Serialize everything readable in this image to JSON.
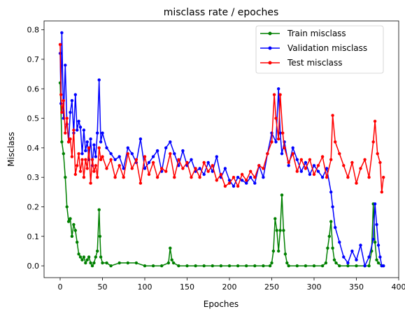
{
  "chart_data": {
    "type": "line",
    "title": "misclass rate / epoches",
    "xlabel": "Epoches",
    "ylabel": "Misclass",
    "xlim": [
      -19,
      400
    ],
    "ylim": [
      -0.04,
      0.83
    ],
    "x_ticks": [
      0,
      50,
      100,
      150,
      200,
      250,
      300,
      350,
      400
    ],
    "x_tick_labels": [
      "0",
      "50",
      "100",
      "150",
      "200",
      "250",
      "300",
      "350",
      "400"
    ],
    "y_ticks": [
      0.0,
      0.1,
      0.2,
      0.3,
      0.4,
      0.5,
      0.6,
      0.7,
      0.8
    ],
    "y_tick_labels": [
      "0.0",
      "0.1",
      "0.2",
      "0.3",
      "0.4",
      "0.5",
      "0.6",
      "0.7",
      "0.8"
    ],
    "grid": false,
    "legend_position": "top-right",
    "series": [
      {
        "name": "Train misclass",
        "color": "#008000",
        "x": [
          0,
          2,
          4,
          6,
          8,
          10,
          12,
          14,
          16,
          18,
          20,
          22,
          24,
          26,
          28,
          30,
          32,
          34,
          36,
          38,
          40,
          42,
          44,
          46,
          47,
          48,
          50,
          55,
          60,
          70,
          80,
          90,
          100,
          110,
          120,
          128,
          130,
          132,
          134,
          140,
          150,
          160,
          170,
          180,
          190,
          200,
          210,
          220,
          230,
          240,
          248,
          250,
          252,
          254,
          256,
          258,
          260,
          262,
          264,
          266,
          268,
          270,
          280,
          290,
          300,
          310,
          314,
          316,
          318,
          320,
          322,
          324,
          326,
          330,
          340,
          350,
          360,
          365,
          368,
          370,
          372,
          374,
          376,
          380,
          382
        ],
        "values": [
          0.62,
          0.42,
          0.38,
          0.3,
          0.2,
          0.15,
          0.16,
          0.1,
          0.14,
          0.12,
          0.08,
          0.04,
          0.03,
          0.02,
          0.03,
          0.01,
          0.02,
          0.03,
          0.01,
          0.0,
          0.01,
          0.03,
          0.05,
          0.19,
          0.1,
          0.03,
          0.01,
          0.01,
          0.0,
          0.01,
          0.01,
          0.01,
          0.0,
          0.0,
          0.0,
          0.01,
          0.06,
          0.02,
          0.01,
          0.0,
          0.0,
          0.0,
          0.0,
          0.0,
          0.0,
          0.0,
          0.0,
          0.0,
          0.0,
          0.0,
          0.0,
          0.01,
          0.05,
          0.16,
          0.12,
          0.05,
          0.12,
          0.24,
          0.12,
          0.04,
          0.01,
          0.0,
          0.0,
          0.0,
          0.0,
          0.0,
          0.01,
          0.06,
          0.1,
          0.15,
          0.06,
          0.02,
          0.01,
          0.0,
          0.0,
          0.0,
          0.0,
          0.0,
          0.05,
          0.21,
          0.08,
          0.02,
          0.01,
          0.0,
          0.0
        ]
      },
      {
        "name": "Validation misclass",
        "color": "#0000ff",
        "x": [
          0,
          1,
          2,
          4,
          6,
          8,
          10,
          12,
          14,
          16,
          18,
          20,
          22,
          24,
          26,
          28,
          30,
          32,
          34,
          36,
          38,
          40,
          42,
          44,
          46,
          48,
          50,
          55,
          60,
          65,
          70,
          75,
          80,
          85,
          90,
          95,
          100,
          105,
          110,
          115,
          120,
          125,
          130,
          135,
          140,
          145,
          150,
          155,
          160,
          165,
          170,
          175,
          180,
          185,
          190,
          195,
          200,
          205,
          210,
          215,
          220,
          225,
          230,
          235,
          240,
          245,
          250,
          255,
          258,
          260,
          262,
          265,
          270,
          275,
          280,
          285,
          290,
          295,
          300,
          305,
          310,
          315,
          320,
          322,
          325,
          330,
          335,
          340,
          345,
          350,
          355,
          360,
          365,
          370,
          372,
          374,
          376,
          378,
          380,
          382
        ],
        "values": [
          0.72,
          0.55,
          0.79,
          0.5,
          0.68,
          0.48,
          0.42,
          0.52,
          0.56,
          0.45,
          0.58,
          0.46,
          0.49,
          0.47,
          0.38,
          0.46,
          0.39,
          0.42,
          0.36,
          0.43,
          0.34,
          0.41,
          0.37,
          0.45,
          0.63,
          0.42,
          0.45,
          0.4,
          0.38,
          0.36,
          0.37,
          0.33,
          0.4,
          0.38,
          0.35,
          0.43,
          0.33,
          0.35,
          0.37,
          0.39,
          0.32,
          0.4,
          0.42,
          0.38,
          0.34,
          0.39,
          0.34,
          0.36,
          0.32,
          0.33,
          0.31,
          0.35,
          0.32,
          0.37,
          0.3,
          0.33,
          0.29,
          0.27,
          0.3,
          0.29,
          0.28,
          0.3,
          0.28,
          0.34,
          0.3,
          0.38,
          0.45,
          0.42,
          0.6,
          0.45,
          0.38,
          0.42,
          0.34,
          0.4,
          0.36,
          0.32,
          0.35,
          0.31,
          0.34,
          0.32,
          0.3,
          0.33,
          0.25,
          0.2,
          0.13,
          0.08,
          0.03,
          0.01,
          0.05,
          0.02,
          0.07,
          0.0,
          0.03,
          0.09,
          0.21,
          0.14,
          0.07,
          0.03,
          0.0,
          0.0
        ]
      },
      {
        "name": "Test misclass",
        "color": "#ff0000",
        "x": [
          0,
          1,
          2,
          4,
          6,
          8,
          10,
          12,
          14,
          16,
          18,
          20,
          22,
          24,
          26,
          28,
          30,
          32,
          34,
          36,
          38,
          40,
          42,
          44,
          46,
          48,
          50,
          55,
          60,
          65,
          70,
          75,
          80,
          85,
          90,
          95,
          100,
          105,
          110,
          115,
          120,
          125,
          130,
          135,
          140,
          145,
          150,
          155,
          160,
          165,
          170,
          175,
          180,
          185,
          190,
          195,
          200,
          205,
          210,
          215,
          220,
          225,
          230,
          235,
          240,
          245,
          250,
          253,
          255,
          258,
          260,
          263,
          265,
          270,
          275,
          280,
          285,
          290,
          295,
          300,
          305,
          310,
          315,
          320,
          322,
          325,
          330,
          335,
          340,
          345,
          350,
          355,
          360,
          365,
          370,
          372,
          375,
          378,
          380,
          382
        ],
        "values": [
          0.75,
          0.58,
          0.52,
          0.56,
          0.45,
          0.5,
          0.42,
          0.43,
          0.37,
          0.46,
          0.31,
          0.34,
          0.38,
          0.32,
          0.36,
          0.3,
          0.36,
          0.33,
          0.4,
          0.28,
          0.36,
          0.32,
          0.34,
          0.3,
          0.4,
          0.36,
          0.37,
          0.33,
          0.36,
          0.3,
          0.34,
          0.3,
          0.38,
          0.33,
          0.36,
          0.28,
          0.37,
          0.31,
          0.35,
          0.3,
          0.33,
          0.32,
          0.38,
          0.3,
          0.36,
          0.33,
          0.35,
          0.3,
          0.33,
          0.3,
          0.35,
          0.32,
          0.34,
          0.29,
          0.31,
          0.27,
          0.28,
          0.3,
          0.27,
          0.31,
          0.29,
          0.32,
          0.3,
          0.34,
          0.33,
          0.38,
          0.42,
          0.58,
          0.5,
          0.43,
          0.58,
          0.45,
          0.4,
          0.35,
          0.38,
          0.32,
          0.36,
          0.33,
          0.36,
          0.31,
          0.34,
          0.37,
          0.3,
          0.36,
          0.51,
          0.42,
          0.38,
          0.34,
          0.3,
          0.35,
          0.28,
          0.33,
          0.36,
          0.3,
          0.42,
          0.49,
          0.38,
          0.35,
          0.25,
          0.3
        ]
      }
    ]
  }
}
